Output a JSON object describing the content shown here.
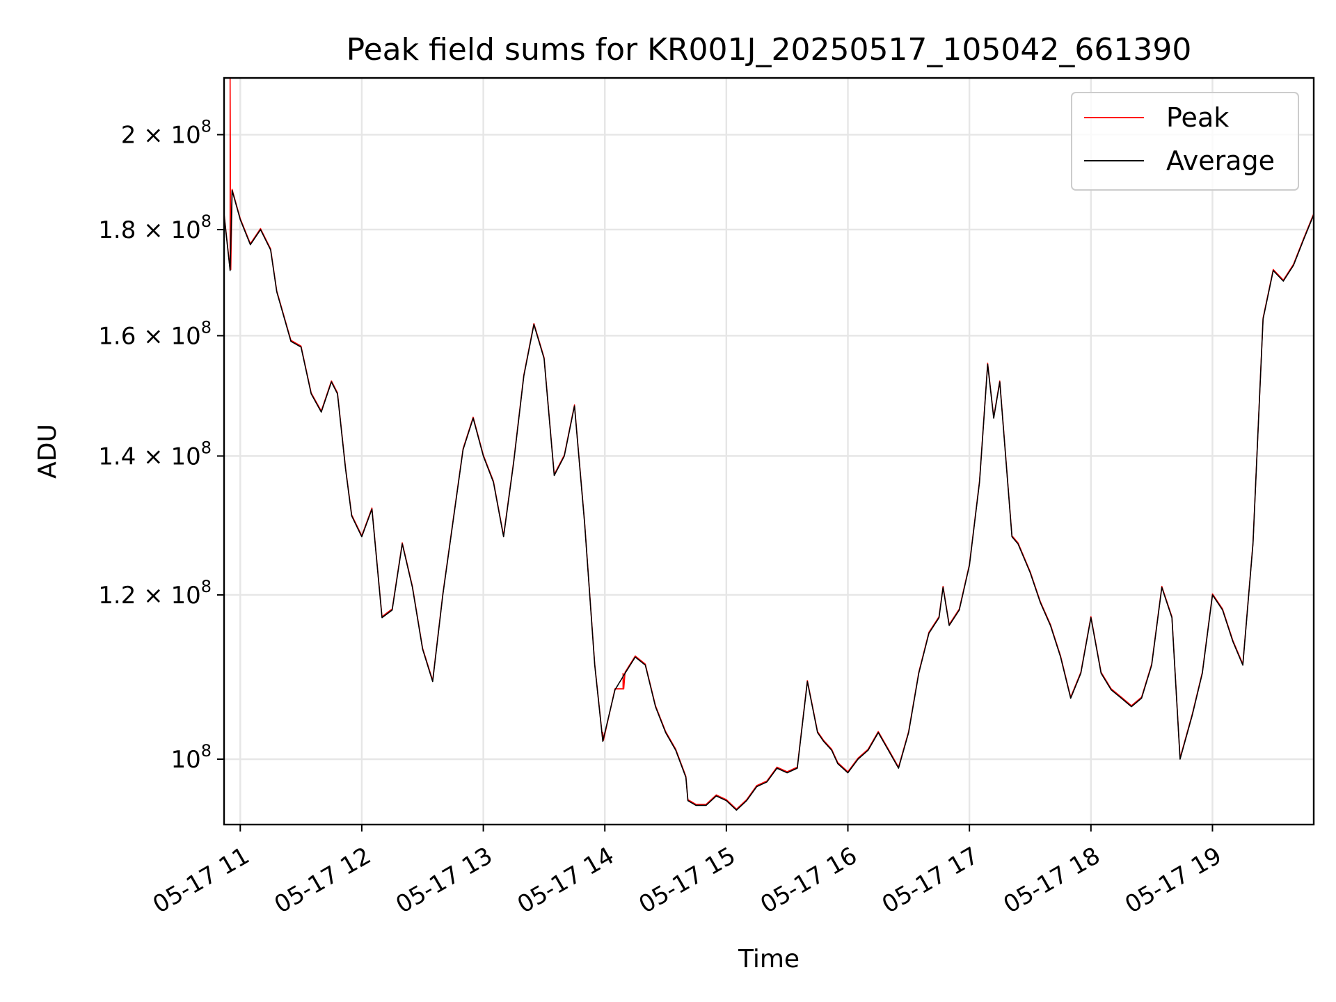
{
  "chart_data": {
    "type": "line",
    "title": "Peak field sums for KR001J_20250517_105042_661390",
    "xlabel": "Time",
    "ylabel": "ADU",
    "y_scale": "log",
    "ylim": [
      93000000,
      213000000
    ],
    "xlim": [
      "2025-05-17 10:52",
      "2025-05-17 19:50"
    ],
    "x_ticks": [
      {
        "t": "2025-05-17 11:00",
        "label": "05-17 11"
      },
      {
        "t": "2025-05-17 12:00",
        "label": "05-17 12"
      },
      {
        "t": "2025-05-17 13:00",
        "label": "05-17 13"
      },
      {
        "t": "2025-05-17 14:00",
        "label": "05-17 14"
      },
      {
        "t": "2025-05-17 15:00",
        "label": "05-17 15"
      },
      {
        "t": "2025-05-17 16:00",
        "label": "05-17 16"
      },
      {
        "t": "2025-05-17 17:00",
        "label": "05-17 17"
      },
      {
        "t": "2025-05-17 18:00",
        "label": "05-17 18"
      },
      {
        "t": "2025-05-17 19:00",
        "label": "05-17 19"
      }
    ],
    "y_ticks": [
      {
        "value": 100000000,
        "mantissa": "",
        "exponent": "8"
      },
      {
        "value": 120000000,
        "mantissa": "1.2",
        "exponent": "8"
      },
      {
        "value": 140000000,
        "mantissa": "1.4",
        "exponent": "8"
      },
      {
        "value": 160000000,
        "mantissa": "1.6",
        "exponent": "8"
      },
      {
        "value": 180000000,
        "mantissa": "1.8",
        "exponent": "8"
      },
      {
        "value": 200000000,
        "mantissa": "2",
        "exponent": "8"
      }
    ],
    "grid": true,
    "legend_position": "top-right",
    "series": [
      {
        "name": "Peak",
        "color": "#ff0000",
        "spikes": [
          {
            "t": "2025-05-17 10:55",
            "y": 213000000
          },
          {
            "t": "2025-05-17 13:59",
            "y": 103000000
          },
          {
            "t": "2025-05-17 14:09",
            "y": 110000000
          }
        ]
      },
      {
        "name": "Average",
        "color": "#000000"
      }
    ],
    "x": [
      "2025-05-17 10:52",
      "2025-05-17 10:55",
      "2025-05-17 10:56",
      "2025-05-17 11:00",
      "2025-05-17 11:05",
      "2025-05-17 11:10",
      "2025-05-17 11:15",
      "2025-05-17 11:18",
      "2025-05-17 11:25",
      "2025-05-17 11:30",
      "2025-05-17 11:35",
      "2025-05-17 11:40",
      "2025-05-17 11:45",
      "2025-05-17 11:48",
      "2025-05-17 11:52",
      "2025-05-17 11:55",
      "2025-05-17 12:00",
      "2025-05-17 12:05",
      "2025-05-17 12:10",
      "2025-05-17 12:15",
      "2025-05-17 12:20",
      "2025-05-17 12:25",
      "2025-05-17 12:30",
      "2025-05-17 12:35",
      "2025-05-17 12:40",
      "2025-05-17 12:50",
      "2025-05-17 12:55",
      "2025-05-17 13:00",
      "2025-05-17 13:05",
      "2025-05-17 13:10",
      "2025-05-17 13:15",
      "2025-05-17 13:20",
      "2025-05-17 13:25",
      "2025-05-17 13:30",
      "2025-05-17 13:35",
      "2025-05-17 13:40",
      "2025-05-17 13:45",
      "2025-05-17 13:50",
      "2025-05-17 13:55",
      "2025-05-17 13:59",
      "2025-05-17 14:05",
      "2025-05-17 14:10",
      "2025-05-17 14:15",
      "2025-05-17 14:20",
      "2025-05-17 14:25",
      "2025-05-17 14:30",
      "2025-05-17 14:35",
      "2025-05-17 14:40",
      "2025-05-17 14:41",
      "2025-05-17 14:45",
      "2025-05-17 14:50",
      "2025-05-17 14:55",
      "2025-05-17 15:00",
      "2025-05-17 15:05",
      "2025-05-17 15:10",
      "2025-05-17 15:15",
      "2025-05-17 15:20",
      "2025-05-17 15:25",
      "2025-05-17 15:30",
      "2025-05-17 15:35",
      "2025-05-17 15:40",
      "2025-05-17 15:45",
      "2025-05-17 15:48",
      "2025-05-17 15:52",
      "2025-05-17 15:55",
      "2025-05-17 16:00",
      "2025-05-17 16:05",
      "2025-05-17 16:10",
      "2025-05-17 16:15",
      "2025-05-17 16:20",
      "2025-05-17 16:25",
      "2025-05-17 16:30",
      "2025-05-17 16:35",
      "2025-05-17 16:40",
      "2025-05-17 16:45",
      "2025-05-17 16:47",
      "2025-05-17 16:50",
      "2025-05-17 16:55",
      "2025-05-17 17:00",
      "2025-05-17 17:05",
      "2025-05-17 17:09",
      "2025-05-17 17:12",
      "2025-05-17 17:15",
      "2025-05-17 17:21",
      "2025-05-17 17:24",
      "2025-05-17 17:30",
      "2025-05-17 17:35",
      "2025-05-17 17:40",
      "2025-05-17 17:45",
      "2025-05-17 17:50",
      "2025-05-17 17:55",
      "2025-05-17 18:00",
      "2025-05-17 18:05",
      "2025-05-17 18:10",
      "2025-05-17 18:15",
      "2025-05-17 18:20",
      "2025-05-17 18:25",
      "2025-05-17 18:30",
      "2025-05-17 18:35",
      "2025-05-17 18:40",
      "2025-05-17 18:44",
      "2025-05-17 18:50",
      "2025-05-17 18:55",
      "2025-05-17 19:00",
      "2025-05-17 19:05",
      "2025-05-17 19:10",
      "2025-05-17 19:15",
      "2025-05-17 19:20",
      "2025-05-17 19:25",
      "2025-05-17 19:30",
      "2025-05-17 19:35",
      "2025-05-17 19:40",
      "2025-05-17 19:45",
      "2025-05-17 19:50"
    ],
    "y": [
      183000000,
      172000000,
      188000000,
      182000000,
      177000000,
      180000000,
      176000000,
      168000000,
      159000000,
      158000000,
      150000000,
      147000000,
      152000000,
      150000000,
      138000000,
      131000000,
      128000000,
      132000000,
      117000000,
      118000000,
      127000000,
      121000000,
      113000000,
      109000000,
      120000000,
      141000000,
      146000000,
      140000000,
      136000000,
      128000000,
      139000000,
      153000000,
      162000000,
      156000000,
      137000000,
      140000000,
      148000000,
      130000000,
      111000000,
      102000000,
      108000000,
      110000000,
      112000000,
      111000000,
      106000000,
      103000000,
      101000000,
      98000000,
      95500000,
      95000000,
      95000000,
      96000000,
      95500000,
      94500000,
      95500000,
      97000000,
      97500000,
      99000000,
      98500000,
      99000000,
      109000000,
      103000000,
      102000000,
      101000000,
      99500000,
      98500000,
      100000000,
      101000000,
      103000000,
      101000000,
      99000000,
      103000000,
      110000000,
      115000000,
      117000000,
      121000000,
      116000000,
      118000000,
      124000000,
      136000000,
      155000000,
      146000000,
      152000000,
      128000000,
      127000000,
      123000000,
      119000000,
      116000000,
      112000000,
      107000000,
      110000000,
      117000000,
      110000000,
      108000000,
      107000000,
      106000000,
      107000000,
      111000000,
      121000000,
      117000000,
      100000000,
      105000000,
      110000000,
      120000000,
      118000000,
      114000000,
      111000000,
      127000000,
      163000000,
      172000000,
      170000000,
      173000000,
      178000000,
      183000000
    ]
  }
}
